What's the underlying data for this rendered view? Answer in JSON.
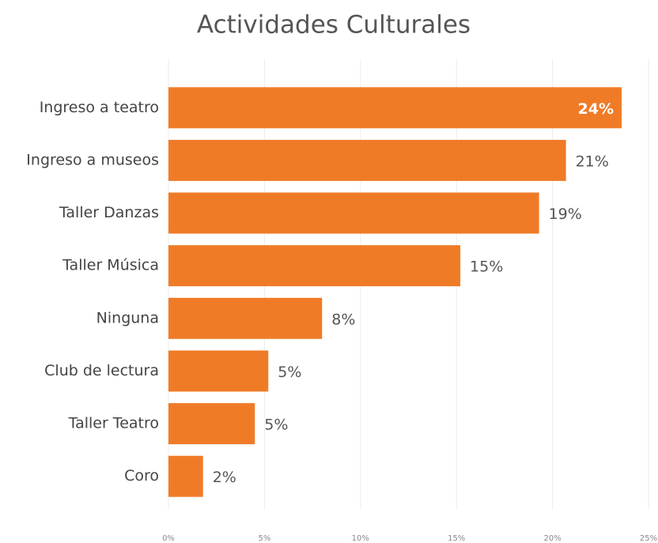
{
  "chart_data": {
    "type": "barh",
    "title": "Actividades Culturales",
    "categories": [
      "Ingreso a teatro",
      "Ingreso a museos",
      "Taller Danzas",
      "Taller Música",
      "Ninguna",
      "Club de lectura",
      "Taller Teatro",
      "Coro"
    ],
    "values": [
      23.6,
      20.7,
      19.3,
      15.2,
      8.0,
      5.2,
      4.5,
      1.8
    ],
    "value_labels": [
      "24%",
      "21%",
      "19%",
      "15%",
      "8%",
      "5%",
      "5%",
      "2%"
    ],
    "color": "#f07b27",
    "xlim": [
      0,
      25
    ],
    "xticks": [
      {
        "value": 0,
        "label": "0%"
      },
      {
        "value": 5,
        "label": "5%"
      },
      {
        "value": 10,
        "label": "10%"
      },
      {
        "value": 15,
        "label": "15%"
      },
      {
        "value": 20,
        "label": "20%"
      },
      {
        "value": 25,
        "label": "25%"
      }
    ],
    "grid": true
  }
}
